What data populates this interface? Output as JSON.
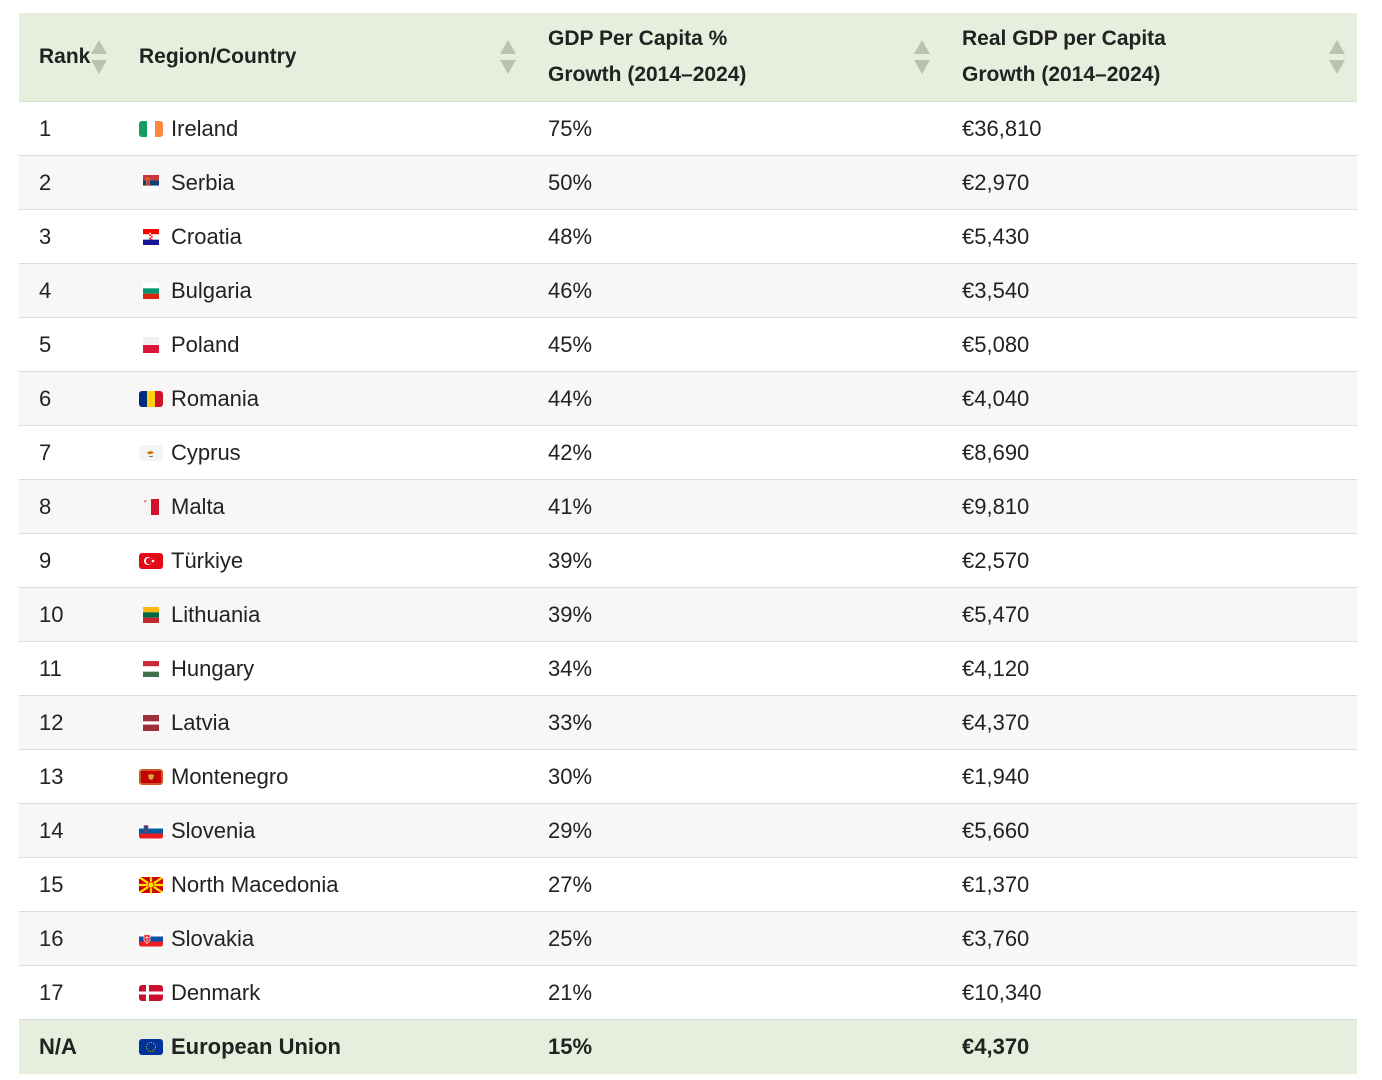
{
  "table": {
    "headers": {
      "rank": "Rank",
      "country": "Region/Country",
      "growth_line1": "GDP Per Capita %",
      "growth_line2": "Growth (2014–2024)",
      "real_line1": "Real GDP per Capita",
      "real_line2": "Growth (2014–2024)"
    },
    "rows": [
      {
        "rank": "1",
        "country": "Ireland",
        "growth": "75%",
        "real": "€36,810",
        "flag": "ireland-flag-icon"
      },
      {
        "rank": "2",
        "country": "Serbia",
        "growth": "50%",
        "real": "€2,970",
        "flag": "serbia-flag-icon"
      },
      {
        "rank": "3",
        "country": "Croatia",
        "growth": "48%",
        "real": "€5,430",
        "flag": "croatia-flag-icon"
      },
      {
        "rank": "4",
        "country": "Bulgaria",
        "growth": "46%",
        "real": "€3,540",
        "flag": "bulgaria-flag-icon"
      },
      {
        "rank": "5",
        "country": "Poland",
        "growth": "45%",
        "real": "€5,080",
        "flag": "poland-flag-icon"
      },
      {
        "rank": "6",
        "country": "Romania",
        "growth": "44%",
        "real": "€4,040",
        "flag": "romania-flag-icon"
      },
      {
        "rank": "7",
        "country": "Cyprus",
        "growth": "42%",
        "real": "€8,690",
        "flag": "cyprus-flag-icon"
      },
      {
        "rank": "8",
        "country": "Malta",
        "growth": "41%",
        "real": "€9,810",
        "flag": "malta-flag-icon"
      },
      {
        "rank": "9",
        "country": "Türkiye",
        "growth": "39%",
        "real": "€2,570",
        "flag": "turkiye-flag-icon"
      },
      {
        "rank": "10",
        "country": "Lithuania",
        "growth": "39%",
        "real": "€5,470",
        "flag": "lithuania-flag-icon"
      },
      {
        "rank": "11",
        "country": "Hungary",
        "growth": "34%",
        "real": "€4,120",
        "flag": "hungary-flag-icon"
      },
      {
        "rank": "12",
        "country": "Latvia",
        "growth": "33%",
        "real": "€4,370",
        "flag": "latvia-flag-icon"
      },
      {
        "rank": "13",
        "country": "Montenegro",
        "growth": "30%",
        "real": "€1,940",
        "flag": "montenegro-flag-icon"
      },
      {
        "rank": "14",
        "country": "Slovenia",
        "growth": "29%",
        "real": "€5,660",
        "flag": "slovenia-flag-icon"
      },
      {
        "rank": "15",
        "country": "North Macedonia",
        "growth": "27%",
        "real": "€1,370",
        "flag": "north-macedonia-flag-icon"
      },
      {
        "rank": "16",
        "country": "Slovakia",
        "growth": "25%",
        "real": "€3,760",
        "flag": "slovakia-flag-icon"
      },
      {
        "rank": "17",
        "country": "Denmark",
        "growth": "21%",
        "real": "€10,340",
        "flag": "denmark-flag-icon"
      }
    ],
    "footer": {
      "rank": "N/A",
      "country": "European Union",
      "growth": "15%",
      "real": "€4,370",
      "flag": "eu-flag-icon"
    }
  },
  "colors": {
    "header_bg": "#e6efdd",
    "row_alt_bg": "#f7f7f7",
    "border": "#dcdcdc",
    "sort_arrow": "#b9c4ad"
  }
}
